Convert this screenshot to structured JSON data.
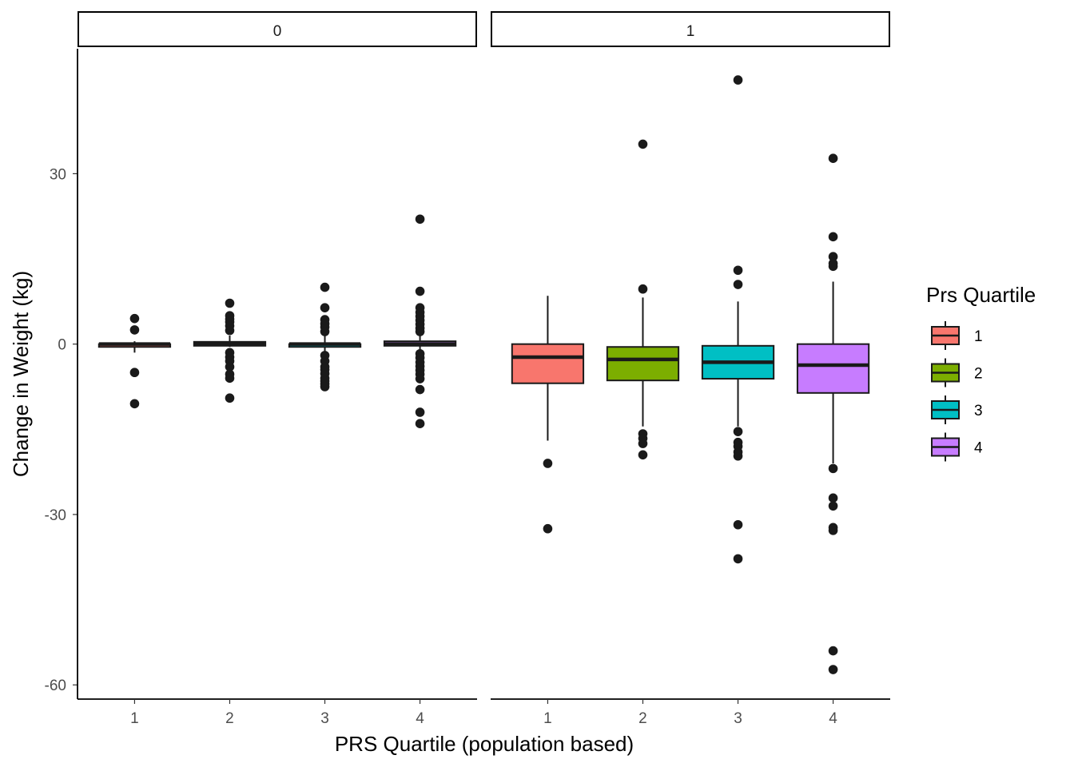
{
  "chart_data": {
    "type": "boxplot",
    "facets": [
      "0",
      "1"
    ],
    "categories": [
      "1",
      "2",
      "3",
      "4"
    ],
    "xlabel": "PRS Quartile (population based)",
    "ylabel": "Change in Weight (kg)",
    "yticks": [
      -60,
      -30,
      0,
      30
    ],
    "ylim": [
      -62.5,
      52
    ],
    "legend": {
      "title": "Prs Quartile",
      "position": "right",
      "entries": [
        {
          "label": "1",
          "color": "#F8766D"
        },
        {
          "label": "2",
          "color": "#7CAE00"
        },
        {
          "label": "3",
          "color": "#00BFC4"
        },
        {
          "label": "4",
          "color": "#C77CFF"
        }
      ]
    },
    "panels": [
      {
        "facet": "0",
        "boxes": [
          {
            "category": "1",
            "fill": "#F8766D",
            "lower_whisker": -1.5,
            "q1": -0.5,
            "median": 0,
            "q3": 0,
            "upper_whisker": 0.5,
            "outliers": [
              4.5,
              2.5,
              -5,
              -10.5
            ]
          },
          {
            "category": "2",
            "fill": "#7CAE00",
            "lower_whisker": -0.5,
            "q1": -0.3,
            "median": 0,
            "q3": 0.4,
            "upper_whisker": 1.5,
            "outliers": [
              7.2,
              5,
              4.4,
              3.9,
              3.2,
              2.4,
              -1.5,
              -2.3,
              -3,
              -4,
              -5.3,
              -6,
              -9.5
            ]
          },
          {
            "category": "3",
            "fill": "#00BFC4",
            "lower_whisker": -1.5,
            "q1": -0.5,
            "median": 0,
            "q3": 0,
            "upper_whisker": 1.5,
            "outliers": [
              10,
              6.4,
              4.3,
              3.6,
              3,
              2.2,
              -2,
              -3,
              -4,
              -4.5,
              -5.2,
              -6,
              -6.5,
              -7,
              -7.5
            ]
          },
          {
            "category": "4",
            "fill": "#C77CFF",
            "lower_whisker": -1.3,
            "q1": -0.3,
            "median": 0,
            "q3": 0.5,
            "upper_whisker": 1.5,
            "outliers": [
              22,
              9.3,
              6.4,
              5.6,
              4.9,
              4.2,
              3.5,
              2.8,
              2.2,
              -1.7,
              -2.4,
              -3.2,
              -3.9,
              -4.6,
              -5.3,
              -6.1,
              -8,
              -12,
              -14
            ]
          }
        ]
      },
      {
        "facet": "1",
        "boxes": [
          {
            "category": "1",
            "fill": "#F8766D",
            "lower_whisker": -17,
            "q1": -6.9,
            "median": -2.3,
            "q3": 0,
            "upper_whisker": 8.5,
            "outliers": [
              -21,
              -32.5
            ]
          },
          {
            "category": "2",
            "fill": "#7CAE00",
            "lower_whisker": -14.5,
            "q1": -6.4,
            "median": -2.7,
            "q3": -0.5,
            "upper_whisker": 8.2,
            "outliers": [
              35.2,
              9.7,
              -15.8,
              -16.6,
              -17.5,
              -19.5
            ]
          },
          {
            "category": "3",
            "fill": "#00BFC4",
            "lower_whisker": -14.5,
            "q1": -6.1,
            "median": -3.2,
            "q3": -0.3,
            "upper_whisker": 7.5,
            "outliers": [
              46.5,
              13,
              10.5,
              -15.4,
              -17.3,
              -18,
              -19,
              -19.7,
              -31.8,
              -37.8
            ]
          },
          {
            "category": "4",
            "fill": "#C77CFF",
            "lower_whisker": -21,
            "q1": -8.6,
            "median": -3.7,
            "q3": 0,
            "upper_whisker": 11,
            "outliers": [
              32.7,
              18.9,
              15.4,
              14.2,
              13.7,
              -21.9,
              -27.1,
              -28.5,
              -32.3,
              -32.8,
              -54,
              -57.3
            ]
          }
        ]
      }
    ]
  }
}
